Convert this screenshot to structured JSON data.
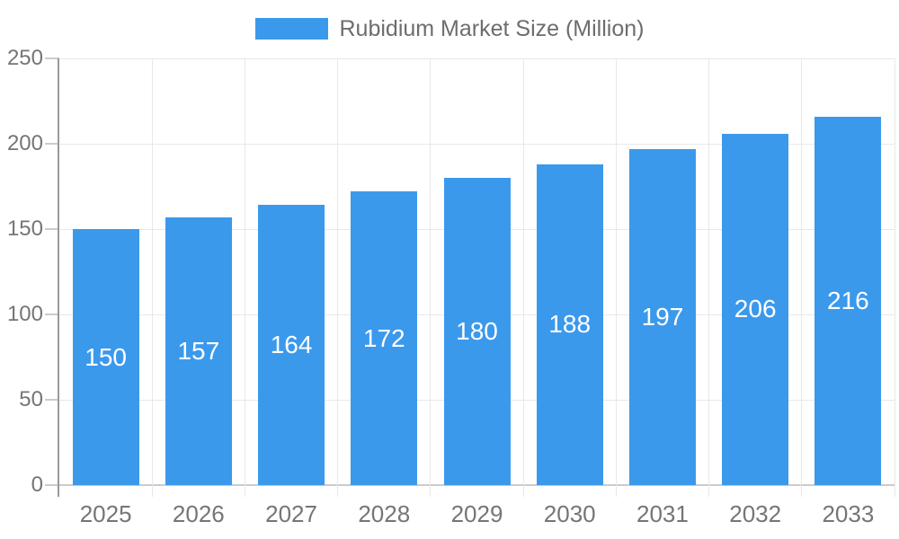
{
  "chart_data": {
    "type": "bar",
    "title": "",
    "legend_label": "Rubidium Market Size (Million)",
    "legend_position": "top-center",
    "categories": [
      "2025",
      "2026",
      "2027",
      "2028",
      "2029",
      "2030",
      "2031",
      "2032",
      "2033"
    ],
    "values": [
      150,
      157,
      164,
      172,
      180,
      188,
      197,
      206,
      216
    ],
    "xlabel": "",
    "ylabel": "",
    "ylim": [
      0,
      250
    ],
    "yticks": [
      0,
      50,
      100,
      150,
      200,
      250
    ],
    "grid": true,
    "value_labels_inside_bars": true,
    "colors": {
      "bar": "#3b99ec",
      "value_label": "#ffffff",
      "axis_text": "#757575",
      "legend_text": "#6d6d6d",
      "axis_line": "#9a9a9a",
      "tick_line": "#cbcbcb",
      "grid_line": "#e8e8e8",
      "background": "#ffffff"
    }
  }
}
